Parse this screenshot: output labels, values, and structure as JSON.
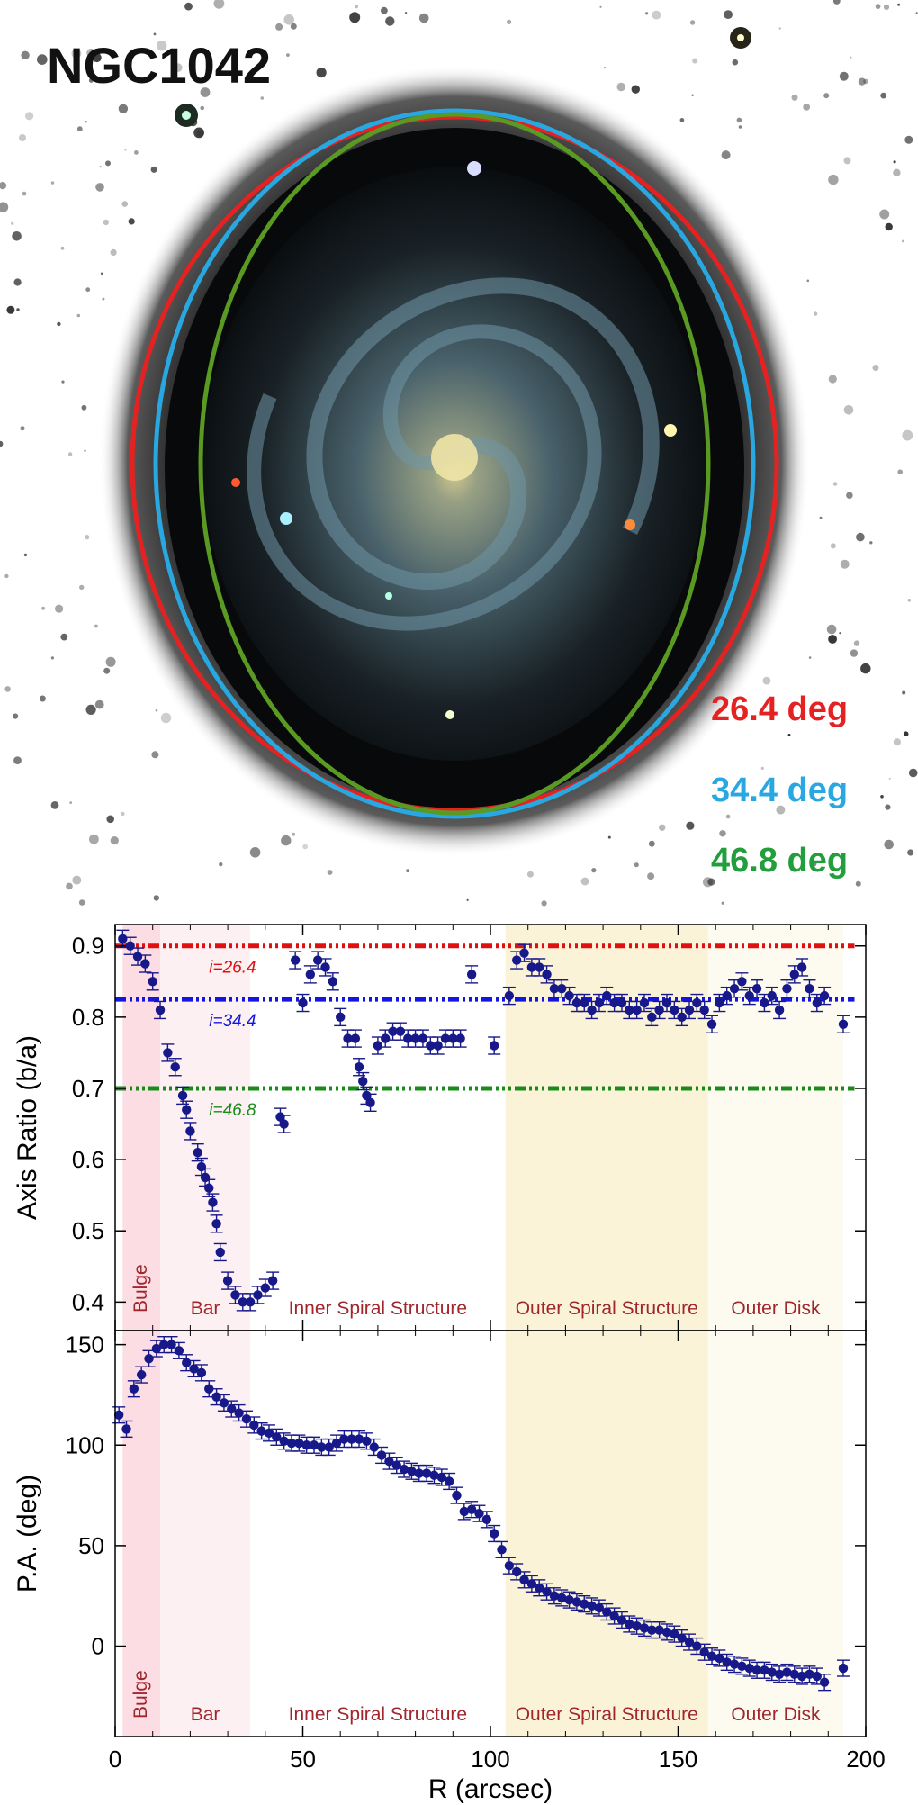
{
  "image": {
    "title": "NGC1042",
    "ellipses": [
      {
        "label": "26.4 deg",
        "color": "#e52222"
      },
      {
        "label": "34.4 deg",
        "color": "#29a7e0"
      },
      {
        "label": "46.8 deg",
        "color": "#239e3c"
      }
    ]
  },
  "chart_data": [
    {
      "type": "scatter",
      "ylabel": "Axis Ratio (b/a)",
      "xlim": [
        0,
        200
      ],
      "ylim": [
        0.36,
        0.93
      ],
      "yticks": [
        0.4,
        0.5,
        0.6,
        0.7,
        0.8,
        0.9
      ],
      "reference_lines": [
        {
          "label": "i=26.4",
          "y": 0.9,
          "color": "#e01010"
        },
        {
          "label": "i=34.4",
          "y": 0.825,
          "color": "#1515e0"
        },
        {
          "label": "i=46.8",
          "y": 0.7,
          "color": "#1a8a1a"
        }
      ],
      "regions": [
        {
          "label": "Bulge",
          "x0": 2,
          "x1": 12,
          "color": "#fbdde3"
        },
        {
          "label": "Bar",
          "x0": 12,
          "x1": 36,
          "color": "#fdf0f2"
        },
        {
          "label": "Inner Spiral Structure",
          "x0": 36,
          "x1": 104,
          "color": "#ffffff"
        },
        {
          "label": "Outer Spiral Structure",
          "x0": 104,
          "x1": 158,
          "color": "#faf3d8"
        },
        {
          "label": "Outer Disk",
          "x0": 158,
          "x1": 194,
          "color": "#fdfbef"
        }
      ],
      "series": [
        {
          "color": "#17188a",
          "x": [
            2,
            4,
            6,
            8,
            10,
            12,
            14,
            16,
            18,
            19,
            20,
            22,
            23,
            24,
            25,
            26,
            27,
            28,
            30,
            32,
            34,
            36,
            38,
            40,
            42,
            44,
            45,
            48,
            50,
            52,
            54,
            56,
            58,
            60,
            62,
            64,
            65,
            66,
            67,
            68,
            70,
            72,
            74,
            76,
            78,
            80,
            82,
            84,
            86,
            88,
            90,
            92,
            95,
            101,
            105,
            107,
            109,
            111,
            113,
            115,
            117,
            119,
            121,
            123,
            125,
            127,
            129,
            131,
            133,
            135,
            137,
            139,
            141,
            143,
            145,
            147,
            149,
            151,
            153,
            155,
            157,
            159,
            161,
            163,
            165,
            167,
            169,
            171,
            173,
            175,
            177,
            179,
            181,
            183,
            185,
            187,
            189,
            194
          ],
          "y": [
            0.91,
            0.9,
            0.885,
            0.875,
            0.85,
            0.81,
            0.75,
            0.73,
            0.69,
            0.67,
            0.64,
            0.61,
            0.59,
            0.575,
            0.56,
            0.54,
            0.51,
            0.47,
            0.43,
            0.41,
            0.4,
            0.4,
            0.41,
            0.42,
            0.43,
            0.66,
            0.65,
            0.88,
            0.82,
            0.86,
            0.88,
            0.87,
            0.85,
            0.8,
            0.77,
            0.77,
            0.73,
            0.71,
            0.69,
            0.68,
            0.76,
            0.77,
            0.78,
            0.78,
            0.77,
            0.77,
            0.77,
            0.76,
            0.76,
            0.77,
            0.77,
            0.77,
            0.86,
            0.76,
            0.83,
            0.88,
            0.89,
            0.87,
            0.87,
            0.86,
            0.84,
            0.84,
            0.83,
            0.82,
            0.82,
            0.81,
            0.82,
            0.83,
            0.82,
            0.82,
            0.81,
            0.81,
            0.82,
            0.8,
            0.81,
            0.82,
            0.81,
            0.8,
            0.81,
            0.82,
            0.81,
            0.79,
            0.82,
            0.83,
            0.84,
            0.85,
            0.83,
            0.84,
            0.82,
            0.83,
            0.81,
            0.84,
            0.86,
            0.87,
            0.84,
            0.82,
            0.83,
            0.79
          ]
        }
      ]
    },
    {
      "type": "scatter",
      "xlabel": "R (arcsec)",
      "ylabel": "P.A. (deg)",
      "xlim": [
        0,
        200
      ],
      "ylim": [
        -45,
        157
      ],
      "xticks": [
        0,
        50,
        100,
        150,
        200
      ],
      "yticks": [
        0,
        50,
        100,
        150
      ],
      "regions": [
        {
          "label": "Bulge",
          "x0": 2,
          "x1": 12,
          "color": "#fbdde3"
        },
        {
          "label": "Bar",
          "x0": 12,
          "x1": 36,
          "color": "#fdf0f2"
        },
        {
          "label": "Inner Spiral Structure",
          "x0": 36,
          "x1": 104,
          "color": "#ffffff"
        },
        {
          "label": "Outer Spiral Structure",
          "x0": 104,
          "x1": 158,
          "color": "#faf3d8"
        },
        {
          "label": "Outer Disk",
          "x0": 158,
          "x1": 194,
          "color": "#fdfbef"
        }
      ],
      "series": [
        {
          "color": "#17188a",
          "x": [
            1,
            3,
            5,
            7,
            9,
            11,
            13,
            15,
            17,
            19,
            21,
            23,
            25,
            27,
            29,
            31,
            33,
            35,
            37,
            39,
            41,
            43,
            45,
            47,
            49,
            51,
            53,
            55,
            57,
            59,
            61,
            63,
            65,
            67,
            69,
            71,
            73,
            75,
            77,
            79,
            81,
            83,
            85,
            87,
            89,
            91,
            93,
            95,
            97,
            99,
            101,
            103,
            105,
            107,
            109,
            111,
            113,
            115,
            117,
            119,
            121,
            123,
            125,
            127,
            129,
            131,
            133,
            135,
            137,
            139,
            141,
            143,
            145,
            147,
            149,
            151,
            153,
            155,
            157,
            159,
            161,
            163,
            165,
            167,
            169,
            171,
            173,
            175,
            177,
            179,
            181,
            183,
            185,
            187,
            189,
            194
          ],
          "y": [
            115,
            108,
            128,
            135,
            143,
            148,
            150,
            150,
            147,
            141,
            138,
            136,
            128,
            124,
            121,
            118,
            116,
            113,
            110,
            107,
            106,
            104,
            102,
            101,
            101,
            100,
            100,
            99,
            99,
            101,
            103,
            103,
            103,
            102,
            99,
            95,
            92,
            90,
            88,
            87,
            86,
            86,
            85,
            84,
            82,
            75,
            67,
            68,
            66,
            63,
            56,
            48,
            40,
            37,
            33,
            31,
            29,
            27,
            25,
            24,
            23,
            22,
            21,
            20,
            19,
            17,
            15,
            13,
            11,
            10,
            9,
            8,
            8,
            7,
            6,
            4,
            2,
            0,
            -3,
            -5,
            -6,
            -8,
            -9,
            -10,
            -11,
            -12,
            -12,
            -13,
            -14,
            -13,
            -14,
            -15,
            -14,
            -15,
            -18,
            -11
          ]
        }
      ]
    }
  ]
}
